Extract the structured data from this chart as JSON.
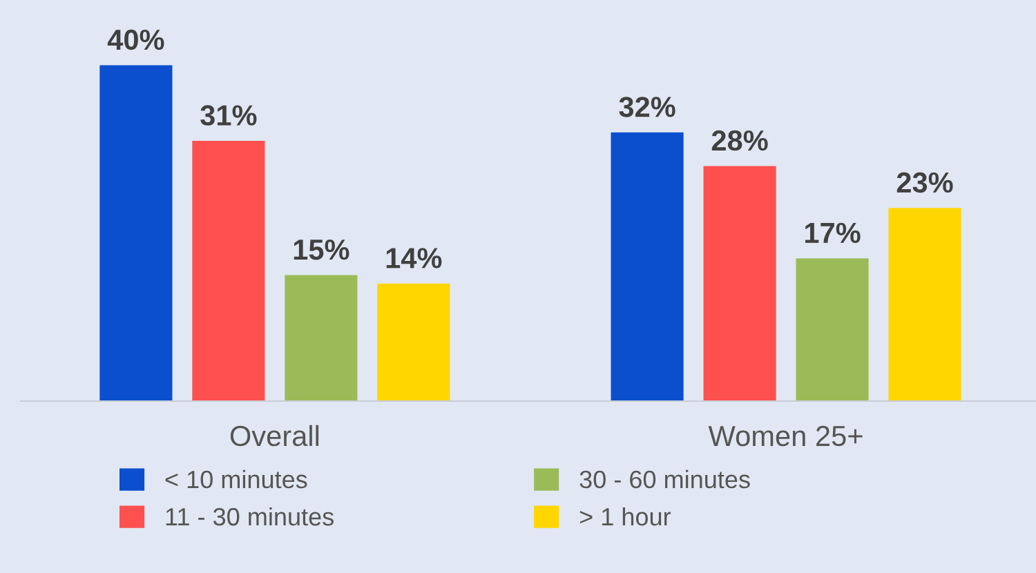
{
  "chart_data": {
    "type": "bar",
    "categories": [
      "Overall",
      "Women 25+"
    ],
    "series": [
      {
        "name": "< 10 minutes",
        "color": "#0b4fce",
        "values": [
          40,
          32
        ],
        "value_labels": [
          "40%",
          "32%"
        ]
      },
      {
        "name": "11 - 30 minutes",
        "color": "#ff5050",
        "values": [
          31,
          28
        ],
        "value_labels": [
          "31%",
          "28%"
        ]
      },
      {
        "name": "30 - 60 minutes",
        "color": "#9bbb59",
        "values": [
          15,
          17
        ],
        "value_labels": [
          "15%",
          "17%"
        ]
      },
      {
        "name": "> 1 hour",
        "color": "#ffd600",
        "values": [
          14,
          23
        ],
        "value_labels": [
          "14%",
          "23%"
        ]
      }
    ],
    "legend": "bottom",
    "grid": false
  }
}
